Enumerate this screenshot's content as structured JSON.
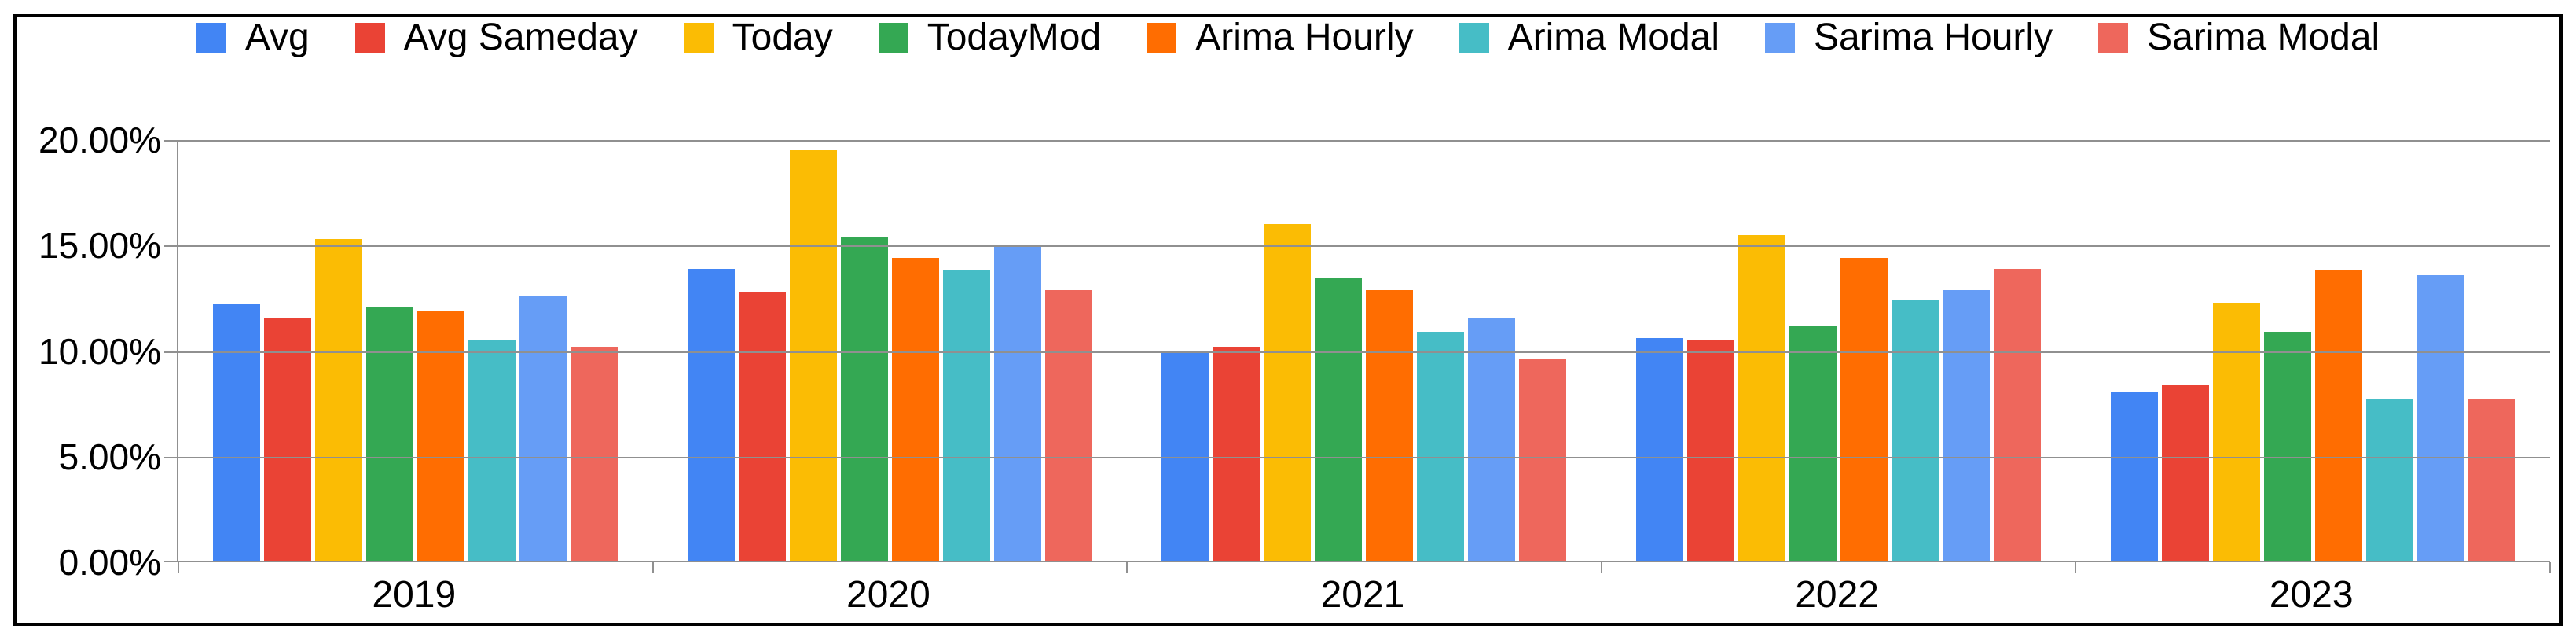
{
  "chart_data": {
    "type": "bar",
    "title": "",
    "categories": [
      "2019",
      "2020",
      "2021",
      "2022",
      "2023"
    ],
    "series": [
      {
        "name": "Avg",
        "color": "#4285F4",
        "values": [
          12.2,
          13.9,
          10.0,
          10.6,
          8.1
        ]
      },
      {
        "name": "Avg Sameday",
        "color": "#EA4335",
        "values": [
          11.6,
          12.8,
          10.2,
          10.5,
          8.4
        ]
      },
      {
        "name": "Today",
        "color": "#FBBC04",
        "values": [
          15.3,
          19.5,
          16.0,
          15.5,
          12.3
        ]
      },
      {
        "name": "TodayMod",
        "color": "#34A853",
        "values": [
          12.1,
          15.4,
          13.5,
          11.2,
          10.9
        ]
      },
      {
        "name": "Arima Hourly",
        "color": "#FF6D01",
        "values": [
          11.9,
          14.4,
          12.9,
          14.4,
          13.8
        ]
      },
      {
        "name": "Arima Modal",
        "color": "#46BDC6",
        "values": [
          10.5,
          13.8,
          10.9,
          12.4,
          7.7
        ]
      },
      {
        "name": "Sarima Hourly",
        "color": "#669DF6",
        "values": [
          12.6,
          15.0,
          11.6,
          12.9,
          13.6
        ]
      },
      {
        "name": "Sarima Modal",
        "color": "#EE675C",
        "values": [
          10.2,
          12.9,
          9.6,
          13.9,
          7.7
        ]
      }
    ],
    "y_axis": {
      "tick_labels": [
        "20.00%",
        "15.00%",
        "10.00%",
        "5.00%",
        "0.00%"
      ],
      "tick_values": [
        20,
        15,
        10,
        5,
        0
      ],
      "ylim": [
        0,
        20
      ],
      "unit": "%"
    },
    "x_axis": {
      "label": "",
      "tick_labels": [
        "2019",
        "2020",
        "2021",
        "2022",
        "2023"
      ]
    },
    "legend_position": "top",
    "grid": true
  },
  "style_colors": {
    "background": "#ffffff",
    "frame_border": "#000000",
    "gridline": "#909090",
    "text": "#000000"
  }
}
